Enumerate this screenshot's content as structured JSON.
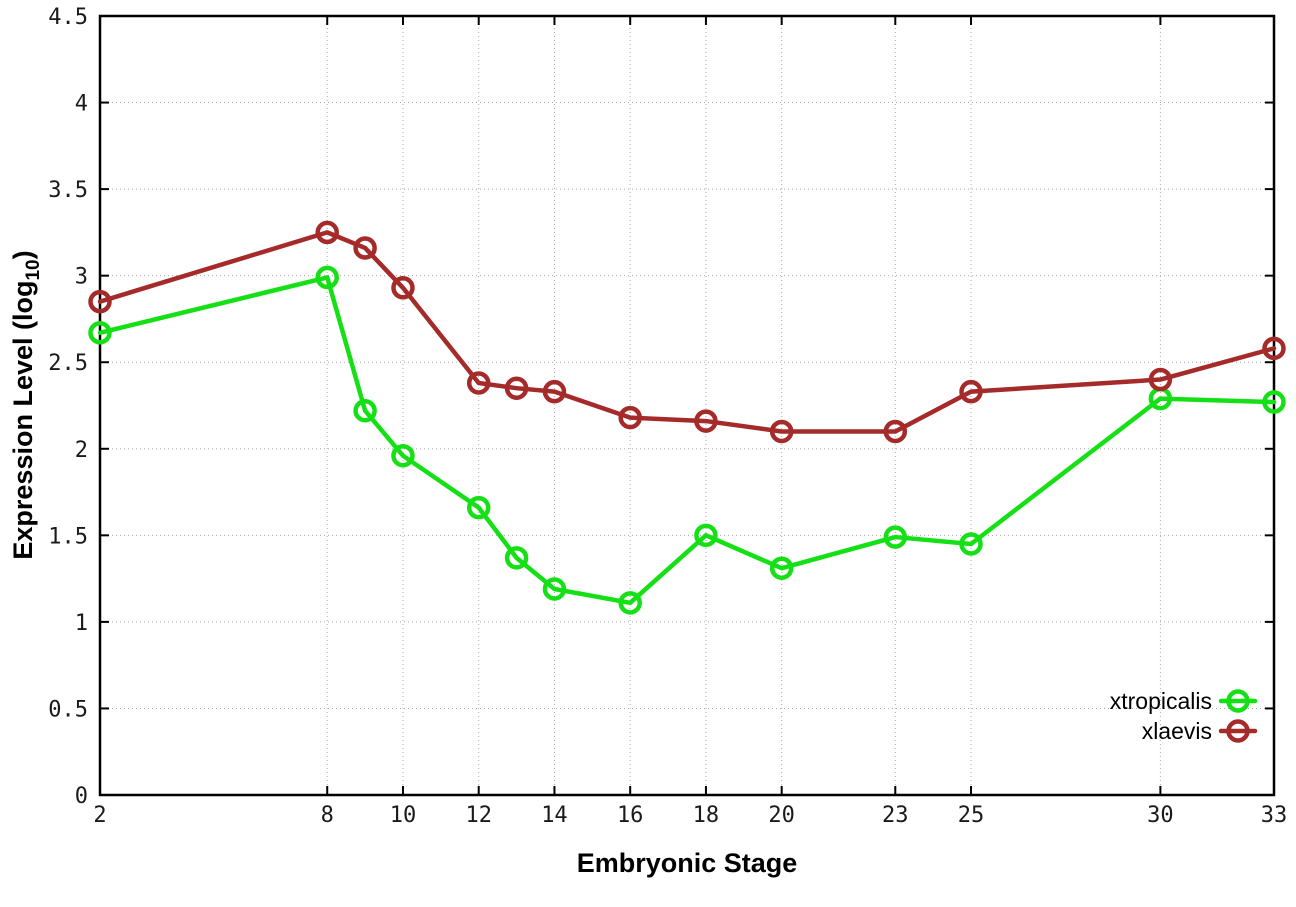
{
  "chart_data": {
    "type": "line",
    "title": "",
    "xlabel": "Embryonic Stage",
    "ylabel": "Expression Level (log10)",
    "ylabel_parts": {
      "pre": "Expression Level (log",
      "sub": "10",
      "post": ")"
    },
    "xlim": [
      2,
      33
    ],
    "ylim": [
      0,
      4.5
    ],
    "x_ticks": [
      2,
      8,
      10,
      12,
      14,
      16,
      18,
      20,
      23,
      25,
      30,
      33
    ],
    "y_ticks": [
      "0",
      "0.5",
      "1",
      "1.5",
      "2",
      "2.5",
      "3",
      "3.5",
      "4",
      "4.5"
    ],
    "grid": true,
    "legend_position": "bottom-right",
    "x": [
      2,
      8,
      9,
      10,
      12,
      13,
      14,
      16,
      18,
      20,
      23,
      25,
      30,
      33
    ],
    "series": [
      {
        "name": "xtropicalis",
        "color": "#15e015",
        "values": [
          2.67,
          2.99,
          2.22,
          1.96,
          1.66,
          1.37,
          1.19,
          1.11,
          1.5,
          1.31,
          1.49,
          1.45,
          2.29,
          2.27
        ]
      },
      {
        "name": "xlaevis",
        "color": "#a52a2a",
        "values": [
          2.85,
          3.25,
          3.16,
          2.93,
          2.38,
          2.35,
          2.33,
          2.18,
          2.16,
          2.1,
          2.1,
          2.33,
          2.4,
          2.58
        ]
      }
    ],
    "style": {
      "grid_color": "#aaaaaa",
      "axis_color": "#000000",
      "line_width": 4.5,
      "marker_radius": 9.5
    }
  }
}
